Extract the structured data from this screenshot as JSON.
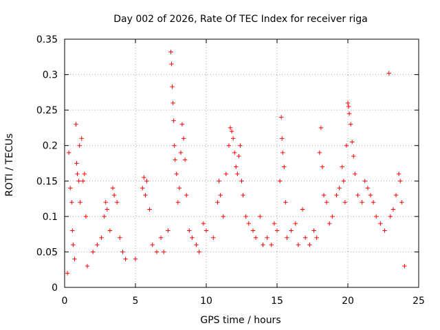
{
  "chart_data": {
    "type": "scatter",
    "title": "Day 002 of 2026, Rate Of TEC Index for receiver riga",
    "xlabel": "GPS time / hours",
    "ylabel": "ROTI / TECUs",
    "xlim": [
      0,
      25
    ],
    "ylim": [
      0,
      0.35
    ],
    "xticks": [
      0,
      5,
      10,
      15,
      20,
      25
    ],
    "xtick_labels": [
      "0",
      "5",
      "10",
      "15",
      "20",
      "25"
    ],
    "yticks": [
      0,
      0.05,
      0.1,
      0.15,
      0.2,
      0.25,
      0.3,
      0.35
    ],
    "ytick_labels": [
      "0",
      "0.05",
      "0.1",
      "0.15",
      "0.2",
      "0.25",
      "0.3",
      "0.35"
    ],
    "grid": true,
    "marker": "+",
    "marker_color": "#ff0000",
    "series": [
      {
        "name": "ROTI",
        "points": [
          [
            0.2,
            0.02
          ],
          [
            0.3,
            0.19
          ],
          [
            0.4,
            0.14
          ],
          [
            0.5,
            0.12
          ],
          [
            0.55,
            0.08
          ],
          [
            0.6,
            0.06
          ],
          [
            0.7,
            0.04
          ],
          [
            0.8,
            0.23
          ],
          [
            0.85,
            0.175
          ],
          [
            0.9,
            0.16
          ],
          [
            1.0,
            0.15
          ],
          [
            1.05,
            0.2
          ],
          [
            1.1,
            0.12
          ],
          [
            1.2,
            0.21
          ],
          [
            1.3,
            0.15
          ],
          [
            1.4,
            0.16
          ],
          [
            1.5,
            0.1
          ],
          [
            1.6,
            0.03
          ],
          [
            2.0,
            0.05
          ],
          [
            2.3,
            0.06
          ],
          [
            2.6,
            0.07
          ],
          [
            2.8,
            0.1
          ],
          [
            2.9,
            0.12
          ],
          [
            3.0,
            0.11
          ],
          [
            3.2,
            0.08
          ],
          [
            3.4,
            0.14
          ],
          [
            3.5,
            0.13
          ],
          [
            3.7,
            0.12
          ],
          [
            3.9,
            0.07
          ],
          [
            4.1,
            0.05
          ],
          [
            4.3,
            0.04
          ],
          [
            5.0,
            0.04
          ],
          [
            5.5,
            0.14
          ],
          [
            5.6,
            0.155
          ],
          [
            5.7,
            0.13
          ],
          [
            5.8,
            0.15
          ],
          [
            6.0,
            0.11
          ],
          [
            6.2,
            0.06
          ],
          [
            6.5,
            0.05
          ],
          [
            6.8,
            0.07
          ],
          [
            7.0,
            0.05
          ],
          [
            7.3,
            0.08
          ],
          [
            7.5,
            0.332
          ],
          [
            7.55,
            0.315
          ],
          [
            7.6,
            0.283
          ],
          [
            7.65,
            0.26
          ],
          [
            7.7,
            0.235
          ],
          [
            7.75,
            0.2
          ],
          [
            7.8,
            0.18
          ],
          [
            7.9,
            0.16
          ],
          [
            8.0,
            0.12
          ],
          [
            8.1,
            0.14
          ],
          [
            8.2,
            0.19
          ],
          [
            8.3,
            0.23
          ],
          [
            8.4,
            0.21
          ],
          [
            8.5,
            0.18
          ],
          [
            8.6,
            0.13
          ],
          [
            8.8,
            0.08
          ],
          [
            9.0,
            0.07
          ],
          [
            9.3,
            0.06
          ],
          [
            9.5,
            0.05
          ],
          [
            9.8,
            0.09
          ],
          [
            10.0,
            0.08
          ],
          [
            10.5,
            0.07
          ],
          [
            10.8,
            0.12
          ],
          [
            10.9,
            0.15
          ],
          [
            11.0,
            0.13
          ],
          [
            11.2,
            0.1
          ],
          [
            11.4,
            0.16
          ],
          [
            11.6,
            0.2
          ],
          [
            11.7,
            0.225
          ],
          [
            11.8,
            0.22
          ],
          [
            11.9,
            0.21
          ],
          [
            12.0,
            0.19
          ],
          [
            12.1,
            0.17
          ],
          [
            12.2,
            0.16
          ],
          [
            12.3,
            0.185
          ],
          [
            12.4,
            0.2
          ],
          [
            12.5,
            0.15
          ],
          [
            12.6,
            0.13
          ],
          [
            12.8,
            0.1
          ],
          [
            13.0,
            0.09
          ],
          [
            13.3,
            0.08
          ],
          [
            13.5,
            0.07
          ],
          [
            13.8,
            0.1
          ],
          [
            14.0,
            0.06
          ],
          [
            14.3,
            0.07
          ],
          [
            14.6,
            0.06
          ],
          [
            14.8,
            0.09
          ],
          [
            15.0,
            0.08
          ],
          [
            15.2,
            0.15
          ],
          [
            15.3,
            0.24
          ],
          [
            15.35,
            0.21
          ],
          [
            15.4,
            0.19
          ],
          [
            15.5,
            0.17
          ],
          [
            15.6,
            0.12
          ],
          [
            15.7,
            0.07
          ],
          [
            16.0,
            0.08
          ],
          [
            16.3,
            0.09
          ],
          [
            16.5,
            0.06
          ],
          [
            16.8,
            0.11
          ],
          [
            17.0,
            0.07
          ],
          [
            17.3,
            0.06
          ],
          [
            17.6,
            0.08
          ],
          [
            17.8,
            0.07
          ],
          [
            18.0,
            0.19
          ],
          [
            18.1,
            0.225
          ],
          [
            18.2,
            0.17
          ],
          [
            18.3,
            0.13
          ],
          [
            18.5,
            0.12
          ],
          [
            18.7,
            0.09
          ],
          [
            18.9,
            0.1
          ],
          [
            19.2,
            0.13
          ],
          [
            19.4,
            0.14
          ],
          [
            19.6,
            0.17
          ],
          [
            19.7,
            0.15
          ],
          [
            19.8,
            0.12
          ],
          [
            19.9,
            0.2
          ],
          [
            20.0,
            0.26
          ],
          [
            20.05,
            0.255
          ],
          [
            20.1,
            0.245
          ],
          [
            20.2,
            0.23
          ],
          [
            20.3,
            0.205
          ],
          [
            20.4,
            0.185
          ],
          [
            20.5,
            0.16
          ],
          [
            20.7,
            0.13
          ],
          [
            21.0,
            0.12
          ],
          [
            21.2,
            0.15
          ],
          [
            21.4,
            0.14
          ],
          [
            21.6,
            0.13
          ],
          [
            21.8,
            0.12
          ],
          [
            22.0,
            0.1
          ],
          [
            22.3,
            0.09
          ],
          [
            22.6,
            0.08
          ],
          [
            22.9,
            0.302
          ],
          [
            23.0,
            0.1
          ],
          [
            23.2,
            0.11
          ],
          [
            23.4,
            0.13
          ],
          [
            23.6,
            0.16
          ],
          [
            23.7,
            0.15
          ],
          [
            23.8,
            0.12
          ],
          [
            24.0,
            0.03
          ]
        ]
      }
    ]
  }
}
